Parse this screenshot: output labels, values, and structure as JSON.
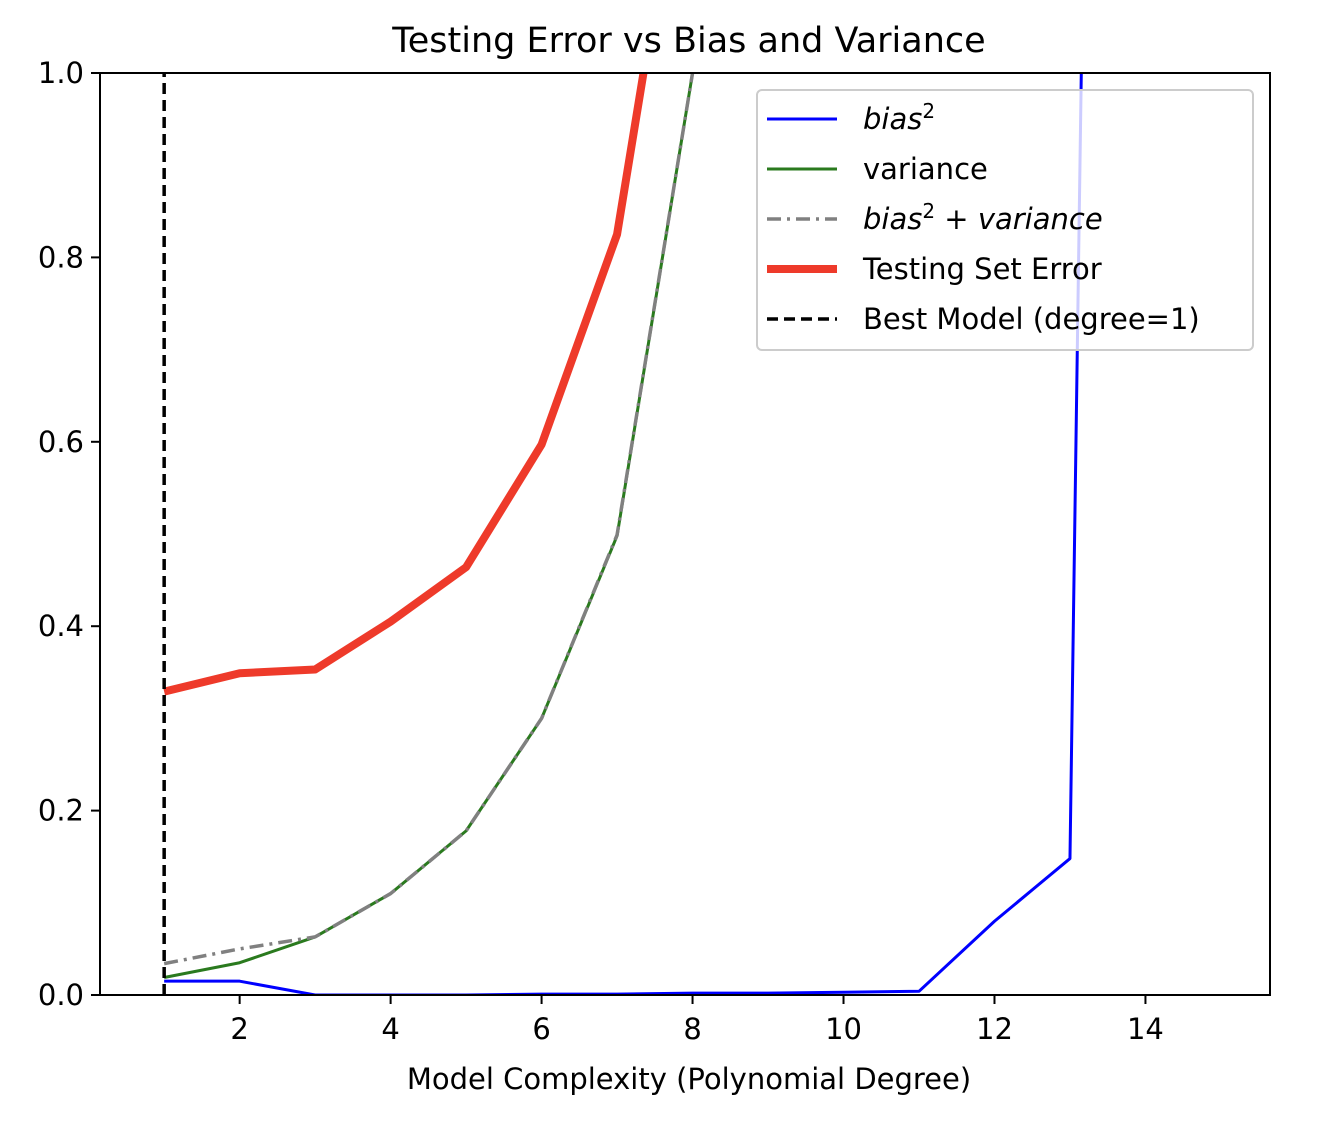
{
  "chart_data": {
    "type": "line",
    "title": "Testing Error vs Bias and Variance",
    "xlabel": "Model Complexity (Polynomial Degree)",
    "ylabel": "",
    "xlim": [
      0.15,
      15.65
    ],
    "ylim": [
      0,
      1.0
    ],
    "xticks": [
      2,
      4,
      6,
      8,
      10,
      12,
      14
    ],
    "yticks": [
      0.0,
      0.2,
      0.4,
      0.6,
      0.8,
      1.0
    ],
    "xtick_labels": [
      "2",
      "4",
      "6",
      "8",
      "10",
      "12",
      "14"
    ],
    "ytick_labels": [
      "0.0",
      "0.2",
      "0.4",
      "0.6",
      "0.8",
      "1.0"
    ],
    "grid": false,
    "legend_position": "top-right",
    "series": [
      {
        "key": "bias2",
        "name": "bias2",
        "legend_base": "bias",
        "legend_sup": "2",
        "legend_suffix": "",
        "italic": true,
        "color": "#0000ff",
        "style": "solid",
        "x": [
          1,
          2,
          3,
          4,
          5,
          6,
          7,
          8,
          9,
          10,
          11,
          12,
          13,
          13.15
        ],
        "y": [
          0.015,
          0.015,
          0.0,
          0.0,
          0.0,
          0.001,
          0.001,
          0.002,
          0.002,
          0.003,
          0.004,
          0.08,
          0.148,
          1.0
        ]
      },
      {
        "key": "variance",
        "name": "variance",
        "italic": false,
        "color": "#2a7a1e",
        "style": "solid",
        "x": [
          1,
          2,
          3,
          4,
          5,
          6,
          7,
          8
        ],
        "y": [
          0.019,
          0.035,
          0.063,
          0.11,
          0.178,
          0.3,
          0.498,
          1.0
        ]
      },
      {
        "key": "bias2_variance",
        "name": "bias2 + variance",
        "legend_base": "bias",
        "legend_sup": "2",
        "legend_suffix": " + variance",
        "italic": true,
        "color": "#808080",
        "style": "dashdot",
        "x": [
          1,
          2,
          3,
          4,
          5,
          6,
          7,
          8
        ],
        "y": [
          0.034,
          0.05,
          0.063,
          0.11,
          0.178,
          0.3,
          0.499,
          1.0
        ]
      },
      {
        "key": "testing_error",
        "name": "Testing Set Error",
        "italic": false,
        "color": "#ee3a2a",
        "style": "thick",
        "x": [
          1,
          2,
          3,
          4,
          5,
          6,
          7,
          7.35
        ],
        "y": [
          0.329,
          0.349,
          0.353,
          0.405,
          0.464,
          0.597,
          0.825,
          1.0
        ]
      },
      {
        "key": "best_model",
        "name": "Best Model (degree=1)",
        "italic": false,
        "color": "#000000",
        "style": "dashed",
        "x": [
          1,
          1
        ],
        "y": [
          0.0,
          1.0
        ]
      }
    ]
  }
}
